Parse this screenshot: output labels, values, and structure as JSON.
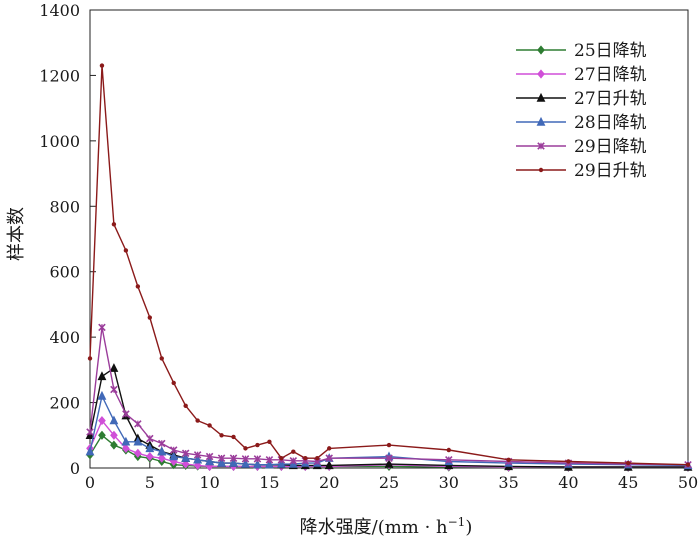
{
  "chart_data": {
    "type": "line",
    "title": "",
    "xlabel": "降水强度/(mm · h",
    "xlabel_sup": "−1",
    "xlabel_close": ")",
    "ylabel": "样本数",
    "xlim": [
      0,
      50
    ],
    "ylim": [
      0,
      1400
    ],
    "xticks": [
      "0",
      "5",
      "10",
      "15",
      "20",
      "25",
      "30",
      "35",
      "40",
      "45",
      "50"
    ],
    "yticks": [
      "0",
      "200",
      "400",
      "600",
      "800",
      "1000",
      "1200",
      "1400"
    ],
    "grid": false,
    "legend_position": "top-right",
    "series": [
      {
        "name": "25日降轨",
        "color": "#2e7d32",
        "marker": "diamond",
        "x": [
          0,
          1,
          2,
          3,
          4,
          5,
          6,
          7,
          8,
          9,
          10,
          12,
          14,
          16,
          18,
          20,
          25,
          30,
          35,
          40,
          45,
          50
        ],
        "y": [
          40,
          100,
          70,
          55,
          35,
          30,
          20,
          10,
          8,
          6,
          5,
          5,
          5,
          5,
          5,
          5,
          5,
          3,
          2,
          2,
          2,
          2
        ]
      },
      {
        "name": "27日降轨",
        "color": "#d04fd8",
        "marker": "diamond",
        "x": [
          0,
          1,
          2,
          3,
          4,
          5,
          6,
          7,
          8,
          9,
          10,
          12,
          14,
          16,
          18,
          20,
          25,
          30,
          35,
          40,
          45,
          50
        ],
        "y": [
          60,
          145,
          100,
          60,
          45,
          35,
          30,
          20,
          12,
          8,
          5,
          5,
          5,
          5,
          5,
          5,
          10,
          5,
          3,
          3,
          3,
          3
        ]
      },
      {
        "name": "27日升轨",
        "color": "#111111",
        "marker": "triangle",
        "x": [
          0,
          1,
          2,
          3,
          4,
          5,
          6,
          7,
          8,
          9,
          10,
          11,
          12,
          13,
          14,
          15,
          16,
          17,
          18,
          19,
          20,
          25,
          30,
          35,
          40,
          45,
          50
        ],
        "y": [
          100,
          280,
          305,
          160,
          90,
          70,
          50,
          40,
          30,
          25,
          20,
          15,
          15,
          12,
          10,
          10,
          10,
          8,
          8,
          8,
          8,
          12,
          8,
          5,
          3,
          3,
          3
        ]
      },
      {
        "name": "28日降轨",
        "color": "#4169b8",
        "marker": "triangle",
        "x": [
          0,
          1,
          2,
          3,
          4,
          5,
          6,
          7,
          8,
          9,
          10,
          11,
          12,
          13,
          14,
          15,
          16,
          17,
          18,
          19,
          20,
          25,
          30,
          35,
          40,
          45,
          50
        ],
        "y": [
          50,
          220,
          145,
          80,
          80,
          60,
          50,
          35,
          30,
          25,
          20,
          15,
          15,
          12,
          10,
          10,
          12,
          12,
          15,
          15,
          30,
          35,
          20,
          15,
          12,
          10,
          8
        ]
      },
      {
        "name": "29日降轨",
        "color": "#9b3d9b",
        "marker": "x",
        "x": [
          0,
          1,
          2,
          3,
          4,
          5,
          6,
          7,
          8,
          9,
          10,
          11,
          12,
          13,
          14,
          15,
          16,
          17,
          18,
          19,
          20,
          25,
          30,
          35,
          40,
          45,
          50
        ],
        "y": [
          110,
          430,
          240,
          165,
          135,
          90,
          75,
          55,
          45,
          40,
          35,
          30,
          30,
          28,
          28,
          25,
          25,
          22,
          22,
          20,
          30,
          30,
          25,
          20,
          15,
          12,
          10
        ]
      },
      {
        "name": "29日升轨",
        "color": "#8b1a1a",
        "marker": "dot",
        "x": [
          0,
          1,
          2,
          3,
          4,
          5,
          6,
          7,
          8,
          9,
          10,
          11,
          12,
          13,
          14,
          15,
          16,
          17,
          18,
          19,
          20,
          25,
          30,
          35,
          40,
          45,
          50
        ],
        "y": [
          335,
          1230,
          745,
          665,
          555,
          460,
          335,
          260,
          190,
          145,
          130,
          100,
          95,
          60,
          70,
          80,
          30,
          50,
          30,
          30,
          60,
          70,
          55,
          25,
          20,
          15,
          10
        ]
      }
    ]
  }
}
